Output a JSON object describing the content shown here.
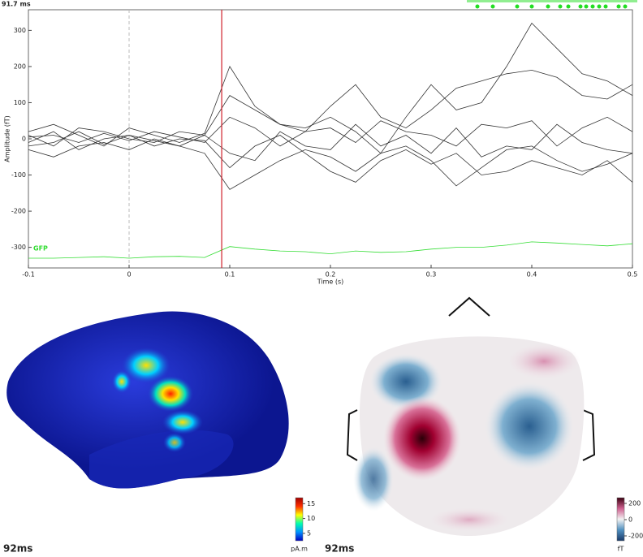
{
  "time_label": "91.7 ms",
  "chart_data": [
    {
      "type": "line",
      "ylabel": "Amplitude (fT)",
      "xlabel": "Time (s)",
      "x": [
        -0.1,
        -0.075,
        -0.05,
        -0.025,
        0,
        0.025,
        0.05,
        0.075,
        0.1,
        0.125,
        0.15,
        0.175,
        0.2,
        0.225,
        0.25,
        0.275,
        0.3,
        0.325,
        0.35,
        0.375,
        0.4,
        0.425,
        0.45,
        0.475,
        0.5
      ],
      "cursor": 0.092,
      "cursor_color": "#d0202a",
      "trace_color": "#333333",
      "xlim": [
        -0.1,
        0.5
      ],
      "ylim": [
        -357,
        357
      ],
      "xticks": [
        -0.1,
        0,
        0.1,
        0.2,
        0.3,
        0.4,
        0.5
      ],
      "yticks": [
        -300,
        -200,
        -100,
        0,
        100,
        200,
        300
      ],
      "series": [
        {
          "name": "GFP",
          "color": "#33dd33",
          "values": [
            -330,
            -330,
            -328,
            -326,
            -330,
            -326,
            -325,
            -328,
            -298,
            -305,
            -310,
            -312,
            -318,
            -310,
            -314,
            -312,
            -305,
            -300,
            -300,
            -294,
            -285,
            -288,
            -292,
            -296,
            -290
          ]
        },
        {
          "values": [
            20,
            40,
            10,
            -20,
            30,
            10,
            -10,
            15,
            200,
            90,
            40,
            30,
            60,
            20,
            -40,
            60,
            150,
            80,
            100,
            200,
            320,
            250,
            180,
            160,
            120
          ]
        },
        {
          "values": [
            -30,
            -50,
            -20,
            -10,
            -30,
            0,
            -20,
            -40,
            -140,
            -100,
            -60,
            -30,
            -50,
            -90,
            -40,
            -20,
            -60,
            -130,
            -80,
            -30,
            -20,
            -60,
            -90,
            -70,
            -40
          ]
        },
        {
          "values": [
            10,
            -20,
            30,
            20,
            0,
            -10,
            20,
            10,
            120,
            80,
            40,
            20,
            90,
            150,
            60,
            30,
            80,
            140,
            160,
            180,
            190,
            170,
            120,
            110,
            150
          ]
        },
        {
          "values": [
            -10,
            20,
            -30,
            0,
            10,
            -20,
            0,
            -5,
            -80,
            -20,
            10,
            -40,
            -90,
            -120,
            -60,
            -30,
            -70,
            -40,
            -100,
            -90,
            -60,
            -80,
            -100,
            -60,
            -120
          ]
        },
        {
          "values": [
            5,
            10,
            -10,
            15,
            -5,
            20,
            5,
            -10,
            60,
            30,
            -20,
            20,
            30,
            -10,
            50,
            20,
            10,
            -20,
            40,
            30,
            50,
            -20,
            30,
            60,
            20
          ]
        },
        {
          "values": [
            -20,
            -10,
            20,
            -15,
            10,
            -5,
            -20,
            10,
            -40,
            -60,
            20,
            -20,
            -30,
            40,
            -20,
            10,
            -40,
            30,
            -50,
            -20,
            -30,
            40,
            -10,
            -30,
            -40
          ]
        }
      ]
    },
    {
      "type": "colorbar",
      "label": "92ms",
      "unit": "pA.m",
      "clim": [
        2.5,
        17
      ],
      "cticks": [
        5,
        10,
        15
      ],
      "colors": [
        "#0000c0",
        "#0090ff",
        "#00ffb0",
        "#ffff00",
        "#ff3000",
        "#a00000"
      ]
    },
    {
      "type": "colorbar",
      "label": "92ms",
      "unit": "fT",
      "clim": [
        -260,
        270
      ],
      "cticks": [
        -200,
        0,
        200
      ],
      "colors": [
        "#1a3a6a",
        "#5090c0",
        "#f2f2f2",
        "#d06090",
        "#3a0010"
      ]
    }
  ]
}
